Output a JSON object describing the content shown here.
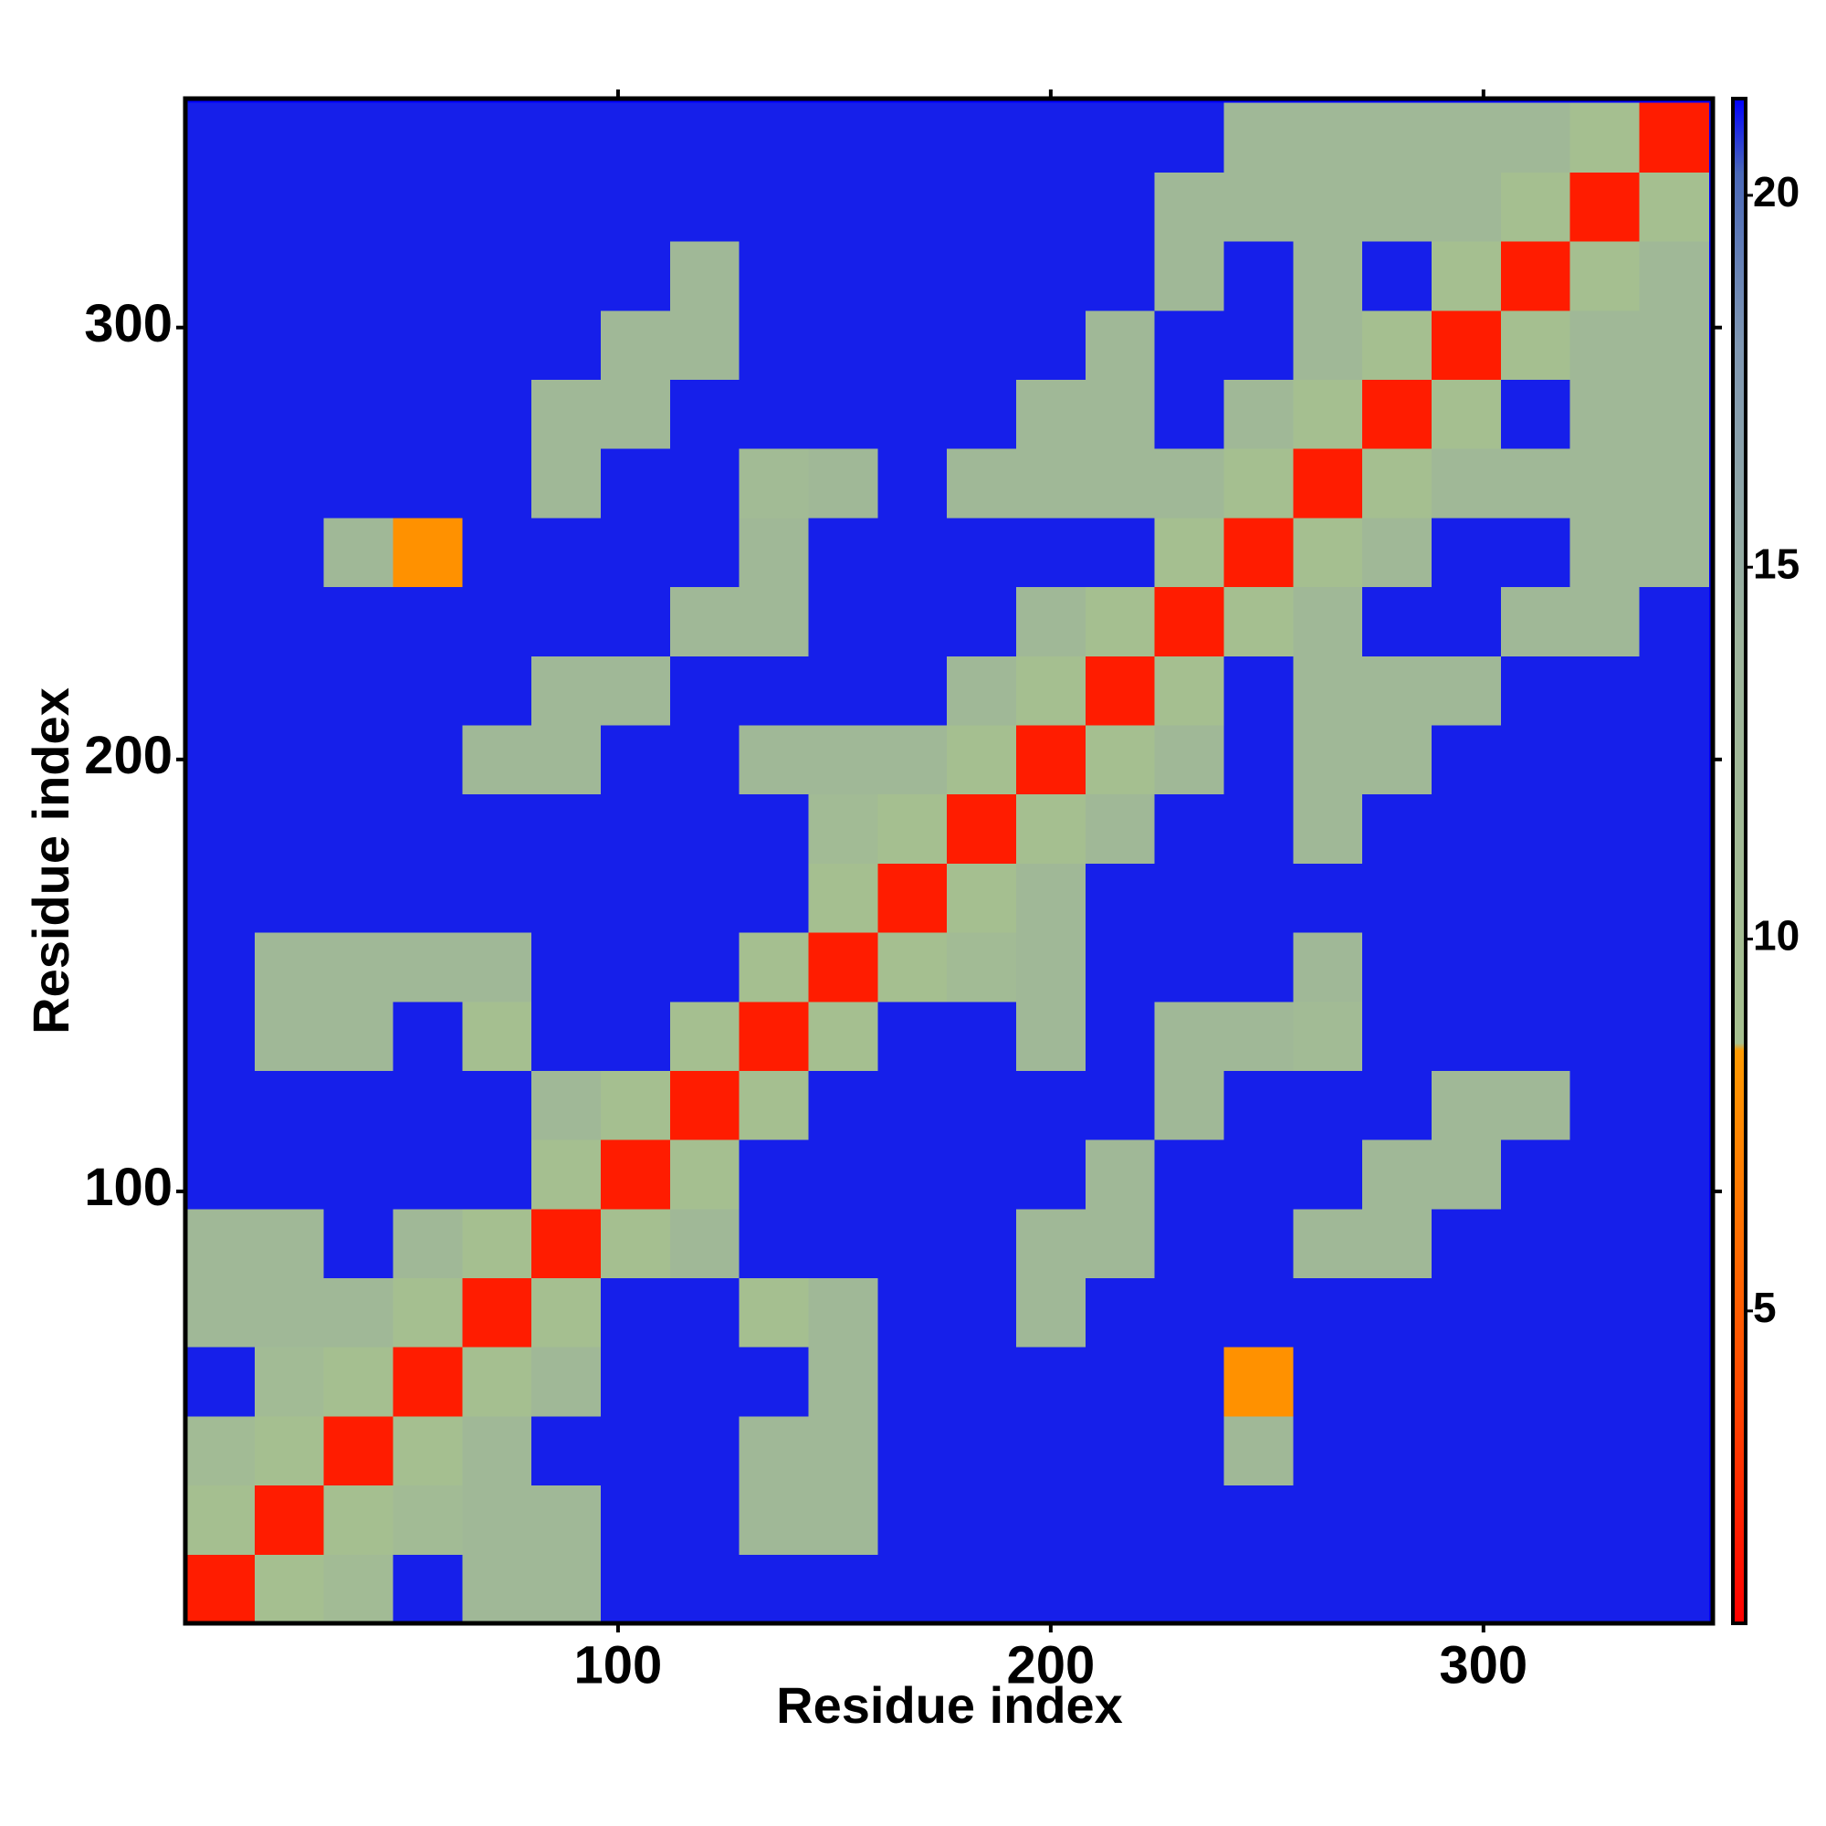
{
  "chart_data": {
    "type": "heatmap",
    "xlabel": "Residue index",
    "ylabel": "Residue index",
    "x": [
      8,
      24,
      40,
      56,
      72,
      88,
      104,
      120,
      136,
      152,
      168,
      184,
      200,
      216,
      232,
      248,
      264,
      280,
      296,
      312,
      328,
      344
    ],
    "y": [
      8,
      24,
      40,
      56,
      72,
      88,
      104,
      120,
      136,
      152,
      168,
      184,
      200,
      216,
      232,
      248,
      264,
      280,
      296,
      312,
      328,
      344
    ],
    "z": [
      [
        2,
        9,
        11,
        21,
        12,
        12,
        21,
        21,
        21,
        21,
        21,
        21,
        21,
        21,
        21,
        21,
        21,
        21,
        21,
        21,
        21,
        21
      ],
      [
        9,
        2,
        9,
        11,
        12,
        12,
        21,
        21,
        12,
        12,
        21,
        21,
        21,
        21,
        21,
        21,
        21,
        21,
        21,
        21,
        21,
        21
      ],
      [
        11,
        9,
        2,
        9,
        12,
        21,
        21,
        21,
        12,
        12,
        21,
        21,
        21,
        21,
        21,
        12,
        21,
        21,
        21,
        21,
        21,
        21
      ],
      [
        21,
        11,
        9,
        2,
        9,
        12,
        21,
        21,
        21,
        12,
        21,
        21,
        21,
        21,
        21,
        8,
        21,
        21,
        21,
        21,
        21,
        21
      ],
      [
        12,
        12,
        12,
        9,
        2,
        9,
        21,
        21,
        9,
        12,
        21,
        21,
        12,
        21,
        21,
        21,
        21,
        21,
        21,
        21,
        21,
        21
      ],
      [
        12,
        12,
        21,
        12,
        9,
        2,
        9,
        12,
        21,
        21,
        21,
        21,
        12,
        12,
        21,
        21,
        12,
        12,
        21,
        21,
        21,
        21
      ],
      [
        21,
        21,
        21,
        21,
        21,
        9,
        2,
        9,
        21,
        21,
        21,
        21,
        21,
        12,
        21,
        21,
        21,
        12,
        12,
        21,
        21,
        21
      ],
      [
        21,
        21,
        21,
        21,
        21,
        12,
        9,
        2,
        9,
        21,
        21,
        21,
        21,
        21,
        12,
        21,
        21,
        21,
        12,
        12,
        21,
        21
      ],
      [
        21,
        12,
        12,
        21,
        9,
        21,
        21,
        9,
        2,
        9,
        21,
        21,
        12,
        21,
        12,
        12,
        11,
        21,
        21,
        21,
        21,
        21
      ],
      [
        21,
        12,
        12,
        12,
        12,
        21,
        21,
        21,
        9,
        2,
        9,
        11,
        12,
        21,
        21,
        21,
        12,
        21,
        21,
        21,
        21,
        21
      ],
      [
        21,
        21,
        21,
        21,
        21,
        21,
        21,
        21,
        21,
        9,
        2,
        9,
        12,
        21,
        21,
        21,
        21,
        21,
        21,
        21,
        21,
        21
      ],
      [
        21,
        21,
        21,
        21,
        21,
        21,
        21,
        21,
        21,
        11,
        9,
        2,
        9,
        12,
        21,
        21,
        12,
        21,
        21,
        21,
        21,
        21
      ],
      [
        21,
        21,
        21,
        21,
        12,
        12,
        21,
        21,
        12,
        12,
        12,
        9,
        2,
        9,
        12,
        21,
        12,
        12,
        21,
        21,
        21,
        21
      ],
      [
        21,
        21,
        21,
        21,
        21,
        12,
        12,
        21,
        21,
        21,
        21,
        12,
        9,
        2,
        9,
        21,
        12,
        12,
        12,
        21,
        21,
        21
      ],
      [
        21,
        21,
        21,
        21,
        21,
        21,
        21,
        12,
        12,
        21,
        21,
        21,
        12,
        9,
        2,
        9,
        12,
        21,
        21,
        12,
        12,
        21
      ],
      [
        21,
        21,
        12,
        8,
        21,
        21,
        21,
        21,
        12,
        21,
        21,
        21,
        21,
        21,
        9,
        2,
        9,
        12,
        21,
        21,
        12,
        12
      ],
      [
        21,
        21,
        21,
        21,
        21,
        12,
        21,
        21,
        11,
        12,
        21,
        12,
        12,
        12,
        12,
        9,
        2,
        9,
        12,
        12,
        12,
        12
      ],
      [
        21,
        21,
        21,
        21,
        21,
        12,
        12,
        21,
        21,
        21,
        21,
        21,
        12,
        12,
        21,
        12,
        9,
        2,
        9,
        21,
        12,
        12
      ],
      [
        21,
        21,
        21,
        21,
        21,
        21,
        12,
        12,
        21,
        21,
        21,
        21,
        21,
        12,
        21,
        21,
        12,
        9,
        2,
        9,
        12,
        12
      ],
      [
        21,
        21,
        21,
        21,
        21,
        21,
        21,
        12,
        21,
        21,
        21,
        21,
        21,
        21,
        12,
        21,
        12,
        21,
        9,
        2,
        9,
        12
      ],
      [
        21,
        21,
        21,
        21,
        21,
        21,
        21,
        21,
        21,
        21,
        21,
        21,
        21,
        21,
        12,
        12,
        12,
        12,
        12,
        9,
        2,
        9
      ],
      [
        21,
        21,
        21,
        21,
        21,
        21,
        21,
        21,
        21,
        21,
        21,
        21,
        21,
        21,
        21,
        12,
        12,
        12,
        12,
        12,
        9,
        2
      ]
    ],
    "xlim": [
      0,
      353
    ],
    "ylim": [
      0,
      353
    ],
    "xticks": [
      100,
      200,
      300
    ],
    "yticks": [
      100,
      200,
      300
    ],
    "zlim": [
      0.8,
      21.3
    ],
    "zticks": [
      5,
      10,
      15,
      20
    ],
    "colorscale": [
      [
        0.8,
        "#ff0000"
      ],
      [
        4,
        "#ff4a00"
      ],
      [
        8.5,
        "#ff9a00"
      ],
      [
        8.6,
        "#a6c08f"
      ],
      [
        14,
        "#9db49c"
      ],
      [
        18,
        "#7f97b2"
      ],
      [
        20.3,
        "#4a68b8"
      ],
      [
        21.3,
        "#0000ff"
      ]
    ]
  }
}
